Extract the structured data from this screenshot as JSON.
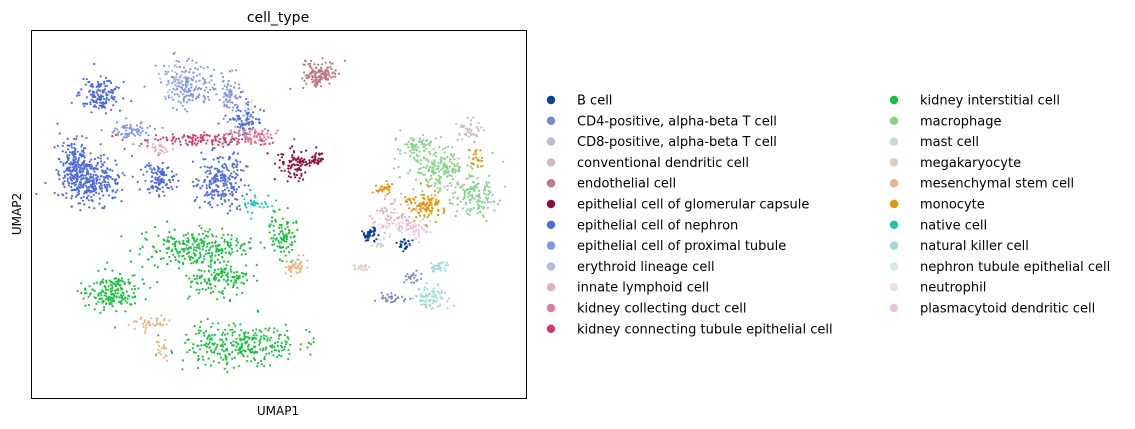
{
  "chart_data": {
    "type": "scatter",
    "title": "cell_type",
    "xlabel": "UMAP1",
    "ylabel": "UMAP2",
    "xlim": [
      0,
      100
    ],
    "ylim": [
      0,
      100
    ],
    "ticks": "none",
    "grid": false,
    "legend_position": "right, two columns",
    "legend": [
      {
        "name": "B cell",
        "color": "#0b3f9e"
      },
      {
        "name": "CD4-positive, alpha-beta T cell",
        "color": "#7d88bf"
      },
      {
        "name": "CD8-positive, alpha-beta T cell",
        "color": "#b8bcd8"
      },
      {
        "name": "conventional dendritic cell",
        "color": "#d8b7bf"
      },
      {
        "name": "endothelial cell",
        "color": "#bf7882"
      },
      {
        "name": "epithelial cell of glomerular capsule",
        "color": "#8a0f3e"
      },
      {
        "name": "epithelial cell of nephron",
        "color": "#4e6bdc"
      },
      {
        "name": "epithelial cell of proximal tubule",
        "color": "#8197e1"
      },
      {
        "name": "erythroid lineage cell",
        "color": "#b1b9e0"
      },
      {
        "name": "innate lymphoid cell",
        "color": "#e4aebb"
      },
      {
        "name": "kidney collecting duct cell",
        "color": "#df7f92"
      },
      {
        "name": "kidney connecting tubule epithelial cell",
        "color": "#cf3a66"
      },
      {
        "name": "kidney interstitial cell",
        "color": "#17c23f"
      },
      {
        "name": "macrophage",
        "color": "#87d38a"
      },
      {
        "name": "mast cell",
        "color": "#c4dcc6"
      },
      {
        "name": "megakaryocyte",
        "color": "#e8c9bc"
      },
      {
        "name": "mesenchymal stem cell",
        "color": "#edb386"
      },
      {
        "name": "monocyte",
        "color": "#e8940a"
      },
      {
        "name": "native cell",
        "color": "#1cc4b2"
      },
      {
        "name": "natural killer cell",
        "color": "#99dcd3"
      },
      {
        "name": "nephron tubule epithelial cell",
        "color": "#d2e8e0"
      },
      {
        "name": "neutrophil",
        "color": "#efdde3"
      },
      {
        "name": "plasmacytoid dendritic cell",
        "color": "#f1c2dd"
      }
    ]
  }
}
